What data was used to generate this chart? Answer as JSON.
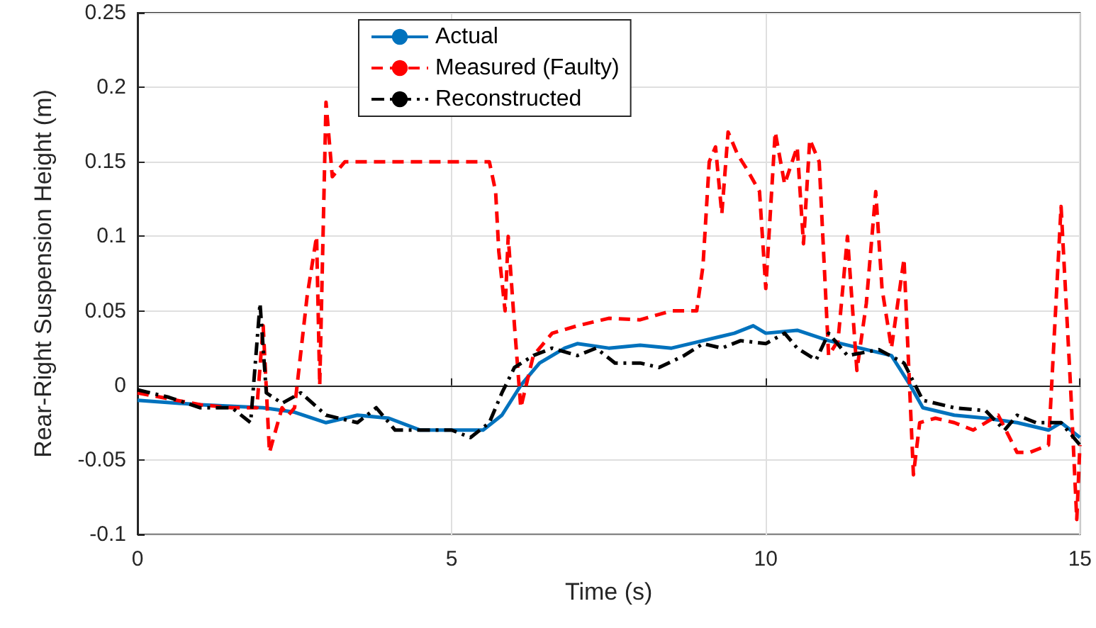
{
  "chart_data": {
    "type": "line",
    "xlabel": "Time (s)",
    "ylabel": "Rear-Right Suspension Height (m)",
    "xlim": [
      0,
      15
    ],
    "xticks": [
      0,
      5,
      10,
      15
    ],
    "ylim": [
      -0.1,
      0.25
    ],
    "yticks": [
      -0.1,
      -0.05,
      0,
      0.05,
      0.1,
      0.15,
      0.2,
      0.25
    ],
    "grid": true,
    "legend": "top",
    "marker": "none",
    "series": [
      {
        "name": "Actual",
        "color": "#0072bd",
        "line_style": "solid",
        "x": [
          0,
          1,
          2,
          2.5,
          3,
          3.5,
          4,
          4.5,
          5,
          5.5,
          5.8,
          6.1,
          6.4,
          6.8,
          7,
          7.5,
          8,
          8.5,
          9,
          9.5,
          9.8,
          10,
          10.5,
          11,
          11.5,
          12,
          12.3,
          12.5,
          13,
          13.5,
          14,
          14.5,
          14.7,
          15
        ],
        "values": [
          -0.01,
          -0.013,
          -0.015,
          -0.018,
          -0.025,
          -0.02,
          -0.022,
          -0.03,
          -0.03,
          -0.03,
          -0.02,
          0,
          0.015,
          0.025,
          0.028,
          0.025,
          0.027,
          0.025,
          0.03,
          0.035,
          0.04,
          0.035,
          0.037,
          0.03,
          0.025,
          0.02,
          0,
          -0.015,
          -0.02,
          -0.022,
          -0.025,
          -0.03,
          -0.025,
          -0.035
        ]
      },
      {
        "name": "Measured (Faulty)",
        "color": "#ff0000",
        "line_style": "dashed",
        "x": [
          0,
          1,
          1.5,
          1.9,
          2.0,
          2.1,
          2.3,
          2.4,
          2.5,
          2.7,
          2.85,
          2.9,
          3.0,
          3.1,
          3.3,
          5.6,
          5.7,
          5.75,
          5.85,
          5.9,
          6.0,
          6.1,
          6.3,
          6.6,
          7,
          7.5,
          8,
          8.5,
          8.9,
          9,
          9.1,
          9.2,
          9.3,
          9.4,
          9.55,
          9.7,
          9.9,
          10,
          10.15,
          10.3,
          10.5,
          10.6,
          10.7,
          10.85,
          11,
          11.15,
          11.3,
          11.45,
          11.6,
          11.75,
          11.85,
          12,
          12.2,
          12.35,
          12.45,
          12.7,
          13,
          13.3,
          13.7,
          14,
          14.2,
          14.5,
          14.7,
          14.85,
          14.95,
          15
        ],
        "values": [
          -0.005,
          -0.013,
          -0.015,
          -0.015,
          0.04,
          -0.045,
          -0.015,
          -0.02,
          -0.015,
          0.06,
          0.1,
          0,
          0.19,
          0.14,
          0.15,
          0.15,
          0.13,
          0.09,
          0.05,
          0.1,
          0.04,
          -0.015,
          0.02,
          0.035,
          0.04,
          0.045,
          0.044,
          0.05,
          0.05,
          0.08,
          0.15,
          0.16,
          0.115,
          0.17,
          0.155,
          0.145,
          0.13,
          0.065,
          0.17,
          0.135,
          0.16,
          0.095,
          0.165,
          0.15,
          0.02,
          0.03,
          0.1,
          0.01,
          0.055,
          0.13,
          0.065,
          0.025,
          0.085,
          -0.06,
          -0.025,
          -0.022,
          -0.025,
          -0.03,
          -0.02,
          -0.045,
          -0.045,
          -0.04,
          0.12,
          0,
          -0.09,
          -0.04
        ]
      },
      {
        "name": "Reconstructed",
        "color": "#000000",
        "line_style": "dashdot",
        "x": [
          0,
          0.5,
          1,
          1.5,
          1.8,
          1.95,
          2.05,
          2.3,
          2.6,
          3,
          3.5,
          3.8,
          4.1,
          4.5,
          5,
          5.3,
          5.6,
          5.8,
          6,
          6.3,
          6.6,
          7,
          7.3,
          7.6,
          8,
          8.3,
          8.7,
          9,
          9.3,
          9.6,
          10,
          10.3,
          10.5,
          10.8,
          11,
          11.3,
          11.8,
          12.2,
          12.5,
          13,
          13.5,
          13.8,
          14,
          14.3,
          14.7,
          15
        ],
        "values": [
          -0.003,
          -0.008,
          -0.015,
          -0.015,
          -0.025,
          0.055,
          -0.005,
          -0.012,
          -0.005,
          -0.02,
          -0.025,
          -0.015,
          -0.03,
          -0.03,
          -0.03,
          -0.035,
          -0.025,
          -0.005,
          0.012,
          0.02,
          0.025,
          0.02,
          0.025,
          0.015,
          0.015,
          0.012,
          0.02,
          0.028,
          0.025,
          0.03,
          0.028,
          0.035,
          0.025,
          0.017,
          0.035,
          0.02,
          0.024,
          0.015,
          -0.01,
          -0.015,
          -0.017,
          -0.03,
          -0.02,
          -0.025,
          -0.025,
          -0.04
        ]
      }
    ]
  }
}
